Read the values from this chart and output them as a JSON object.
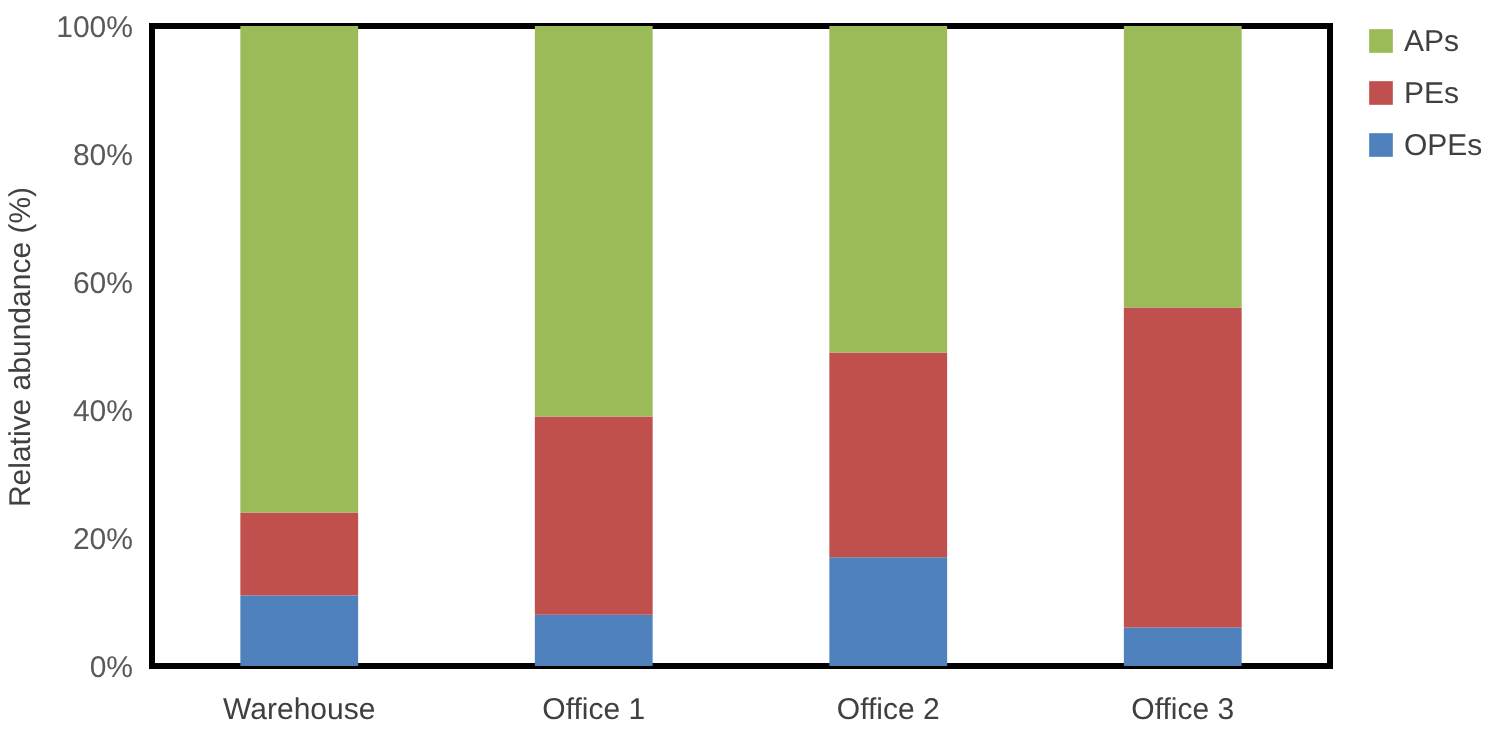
{
  "chart_data": {
    "type": "bar",
    "stacked": true,
    "ylabel": "Relative abundance (%)",
    "categories": [
      "Warehouse",
      "Office 1",
      "Office 2",
      "Office 3"
    ],
    "series": [
      {
        "name": "OPEs",
        "color": "#4f81bd",
        "values": [
          11,
          8,
          17,
          6
        ]
      },
      {
        "name": "PEs",
        "color": "#c0504d",
        "values": [
          13,
          31,
          32,
          50
        ]
      },
      {
        "name": "APs",
        "color": "#9bbb59",
        "values": [
          76,
          61,
          51,
          44
        ]
      }
    ],
    "ylim": [
      0,
      100
    ],
    "yticks": [
      {
        "value": 0,
        "label": "0%"
      },
      {
        "value": 20,
        "label": "20%"
      },
      {
        "value": 40,
        "label": "40%"
      },
      {
        "value": 60,
        "label": "60%"
      },
      {
        "value": 80,
        "label": "80%"
      },
      {
        "value": 100,
        "label": "100%"
      }
    ],
    "grid": false,
    "legend": "right"
  }
}
